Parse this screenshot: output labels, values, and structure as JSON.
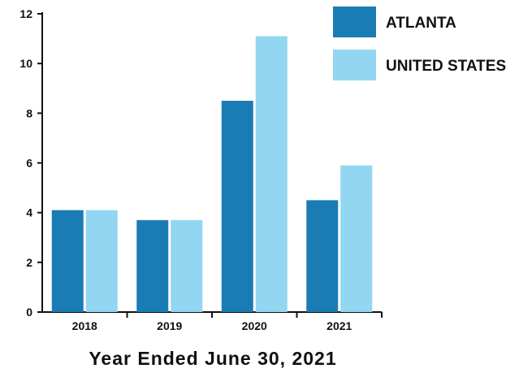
{
  "chart_data": {
    "type": "bar",
    "title": "",
    "xlabel": "Year Ended June 30, 2021",
    "ylabel": "",
    "categories": [
      "2018",
      "2019",
      "2020",
      "2021"
    ],
    "series": [
      {
        "name": "ATLANTA",
        "values": [
          4.1,
          3.7,
          8.5,
          4.5
        ],
        "color": "#1a7cb5"
      },
      {
        "name": "UNITED STATES",
        "values": [
          4.1,
          3.7,
          11.1,
          5.9
        ],
        "color": "#93d6f2"
      }
    ],
    "ylim": [
      0,
      12
    ],
    "yticks": [
      0,
      2,
      4,
      6,
      8,
      10,
      12
    ],
    "grid": false,
    "legend_position": "top-right"
  }
}
